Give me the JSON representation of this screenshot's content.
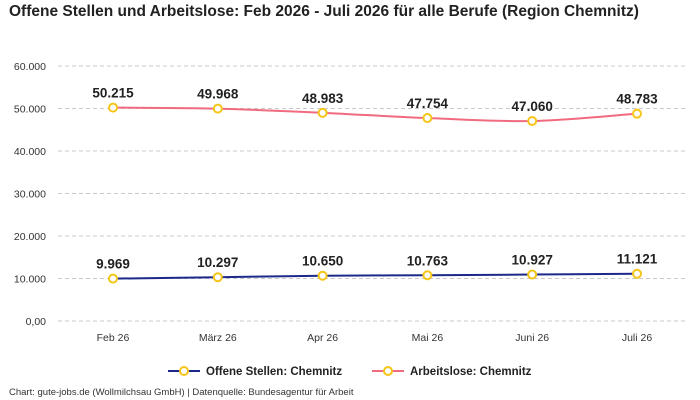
{
  "chart_data": {
    "type": "line",
    "title": "Offene Stellen und Arbeitslose: Feb 2026 - Juli 2026 für alle Berufe (Region Chemnitz)",
    "categories": [
      "Feb 26",
      "März 26",
      "Apr 26",
      "Mai 26",
      "Juni 26",
      "Juli 26"
    ],
    "series": [
      {
        "name": "Offene Stellen: Chemnitz",
        "values": [
          9969,
          10297,
          10650,
          10763,
          10927,
          11121
        ],
        "labels": [
          "9.969",
          "10.297",
          "10.650",
          "10.763",
          "10.927",
          "11.121"
        ],
        "color": "#1b2a8a"
      },
      {
        "name": "Arbeitslose: Chemnitz",
        "values": [
          50215,
          49968,
          48983,
          47754,
          47060,
          48783
        ],
        "labels": [
          "50.215",
          "49.968",
          "48.983",
          "47.754",
          "47.060",
          "48.783"
        ],
        "color": "#f06b80"
      }
    ],
    "ylim": [
      0,
      60000
    ],
    "yticks": [
      0,
      10000,
      20000,
      30000,
      40000,
      50000,
      60000
    ],
    "ytick_labels": [
      "0,00",
      "10.000",
      "20.000",
      "30.000",
      "40.000",
      "50.000",
      "60.000"
    ],
    "grid": true,
    "marker_color": "#f5c518",
    "legend_position": "bottom"
  },
  "credits": "Chart: gute-jobs.de (Wollmilchsau GmbH) | Datenquelle: Bundesagentur für Arbeit"
}
